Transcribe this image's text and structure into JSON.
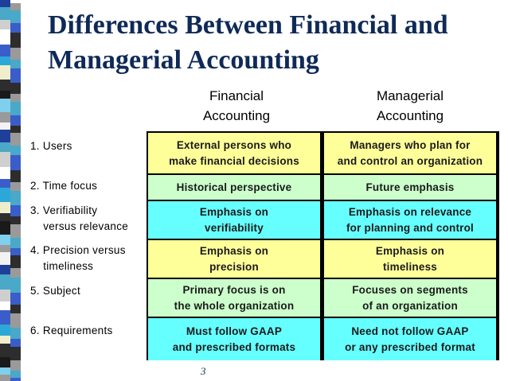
{
  "title_line1": "Differences Between Financial and",
  "title_line2": "Managerial Accounting",
  "columns": {
    "financial": [
      "Financial",
      "Accounting"
    ],
    "managerial": [
      "Managerial",
      "Accounting"
    ]
  },
  "rows": [
    {
      "label": [
        "1. Users",
        ""
      ],
      "color": "#ffff99",
      "financial": [
        "External persons who",
        "make financial decisions"
      ],
      "managerial": [
        "Managers who plan for",
        "and control an organization"
      ]
    },
    {
      "label": [
        "2. Time focus",
        ""
      ],
      "color": "#ccffcc",
      "financial": [
        "Historical perspective",
        ""
      ],
      "managerial": [
        "Future emphasis",
        ""
      ]
    },
    {
      "label": [
        "3. Verifiability",
        "    versus relevance"
      ],
      "color": "#66ffff",
      "financial": [
        "Emphasis on",
        "verifiability"
      ],
      "managerial": [
        "Emphasis on relevance",
        "for planning and control"
      ]
    },
    {
      "label": [
        "4. Precision versus",
        "    timeliness"
      ],
      "color": "#ffff99",
      "financial": [
        "Emphasis on",
        "precision"
      ],
      "managerial": [
        "Emphasis on",
        "timeliness"
      ]
    },
    {
      "label": [
        "5. Subject",
        ""
      ],
      "color": "#ccffcc",
      "financial": [
        "Primary focus is on",
        "the whole organization"
      ],
      "managerial": [
        "Focuses on segments",
        "of an organization"
      ]
    },
    {
      "label": [
        "6. Requirements",
        ""
      ],
      "color": "#66ffff",
      "financial": [
        "Must follow GAAP",
        "and prescribed formats"
      ],
      "managerial": [
        "Need not follow GAAP",
        "or any prescribed format"
      ]
    }
  ],
  "page_number": "3"
}
